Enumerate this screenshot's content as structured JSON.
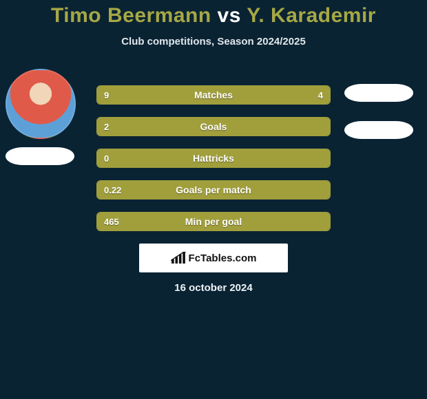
{
  "title": {
    "player1": "Timo Beermann",
    "vs": "vs",
    "player2": "Y. Karademir"
  },
  "subtitle": "Club competitions, Season 2024/2025",
  "bars": {
    "fill_color": "#a19f3c",
    "border_color": "#a19f3c",
    "track_color": "#0a2333",
    "label_fontsize": 14,
    "value_fontsize": 13,
    "rows": [
      {
        "label": "Matches",
        "left_val": "9",
        "right_val": "4",
        "left_pct": 69,
        "right_pct": 31
      },
      {
        "label": "Goals",
        "left_val": "2",
        "right_val": "",
        "left_pct": 100,
        "right_pct": 0
      },
      {
        "label": "Hattricks",
        "left_val": "0",
        "right_val": "",
        "left_pct": 100,
        "right_pct": 0
      },
      {
        "label": "Goals per match",
        "left_val": "0.22",
        "right_val": "",
        "left_pct": 100,
        "right_pct": 0
      },
      {
        "label": "Min per goal",
        "left_val": "465",
        "right_val": "",
        "left_pct": 100,
        "right_pct": 0
      }
    ]
  },
  "brand": "FcTables.com",
  "date": "16 october 2024",
  "colors": {
    "background": "#0a2333",
    "accent": "#a6a845",
    "text": "#ffffff",
    "subtitle": "#dfe6ea",
    "brand_bg": "#ffffff",
    "brand_text": "#111111"
  }
}
